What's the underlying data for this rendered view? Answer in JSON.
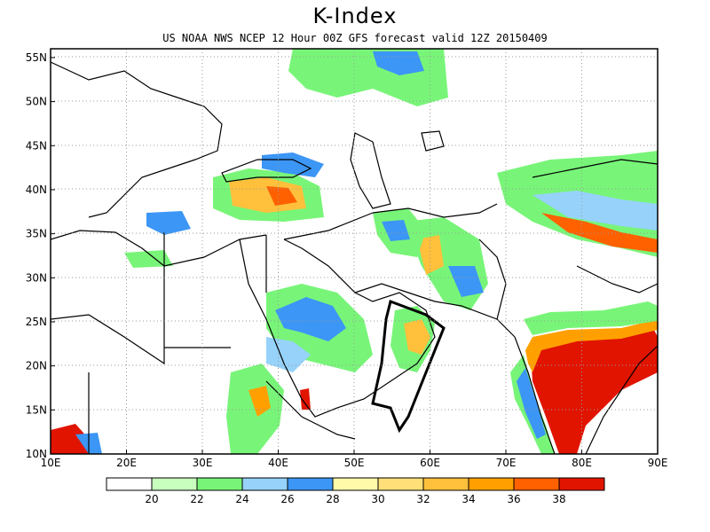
{
  "title": "K-Index",
  "subtitle": "US NOAA NWS NCEP 12 Hour 00Z GFS forecast valid 12Z 20150409",
  "axes": {
    "x_ticks": [
      "10E",
      "20E",
      "30E",
      "40E",
      "50E",
      "60E",
      "70E",
      "80E",
      "90E"
    ],
    "y_ticks": [
      "55N",
      "50N",
      "45N",
      "40N",
      "35N",
      "30N",
      "25N",
      "20N",
      "15N",
      "10N"
    ],
    "lon_range": [
      10,
      90
    ],
    "lat_range": [
      10,
      56
    ]
  },
  "legend": {
    "labels": [
      "20",
      "22",
      "24",
      "26",
      "28",
      "30",
      "32",
      "34",
      "36",
      "38"
    ],
    "colors": [
      "#ffffff",
      "#c8ffbe",
      "#78f578",
      "#96d2fa",
      "#3c96f5",
      "#fffaaa",
      "#ffe078",
      "#ffc03c",
      "#ffa000",
      "#ff6000",
      "#e11400"
    ]
  },
  "colors": {
    "green_light": "#c8ffbe",
    "green": "#78f578",
    "blue_light": "#96d2fa",
    "blue": "#3c96f5",
    "yellow": "#fffaaa",
    "yellow_orange": "#ffe078",
    "orange_light": "#ffc03c",
    "orange": "#ffa000",
    "orange_red": "#ff6000",
    "red": "#e11400"
  }
}
